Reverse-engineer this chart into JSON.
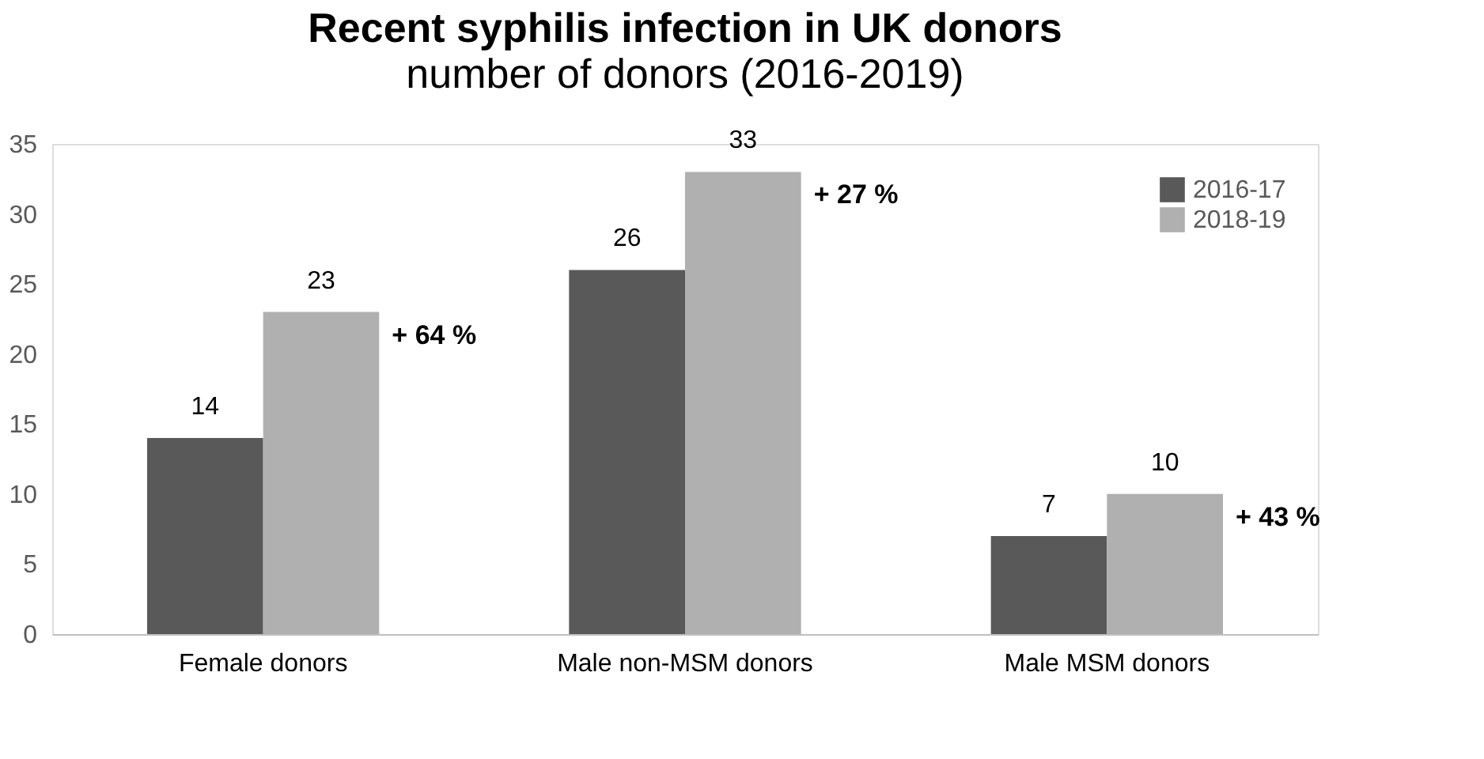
{
  "chart_data": {
    "type": "bar",
    "title": "Recent syphilis infection in UK donors",
    "subtitle": "number of donors (2016-2019)",
    "categories": [
      "Female donors",
      "Male non-MSM donors",
      "Male MSM donors"
    ],
    "series": [
      {
        "name": "2016-17",
        "color": "#595959",
        "values": [
          14,
          26,
          7
        ]
      },
      {
        "name": "2018-19",
        "color": "#b0b0b0",
        "values": [
          23,
          33,
          10
        ]
      }
    ],
    "ylim": [
      0,
      35
    ],
    "yticks": [
      0,
      5,
      10,
      15,
      20,
      25,
      30,
      35
    ],
    "grid": false,
    "legend": "top right",
    "data_labels": true,
    "annotations": [
      "+ 64 %",
      "+ 27 %",
      "+ 43 %"
    ]
  }
}
